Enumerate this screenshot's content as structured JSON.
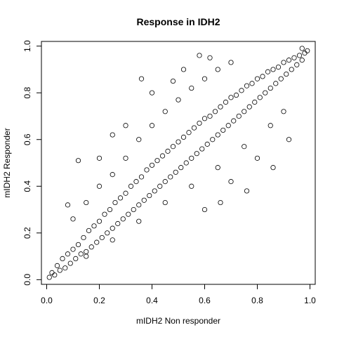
{
  "chart_data": {
    "type": "scatter",
    "title": "Response in IDH2",
    "xlabel": "mIDH2 Non responder",
    "ylabel": "mIDH2 Responder",
    "xlim": [
      -0.02,
      1.02
    ],
    "ylim": [
      -0.02,
      1.02
    ],
    "x_ticks": [
      0.0,
      0.2,
      0.4,
      0.6,
      0.8,
      1.0
    ],
    "y_ticks": [
      0.0,
      0.2,
      0.4,
      0.6,
      0.8,
      1.0
    ],
    "x_tick_labels": [
      "0.0",
      "0.2",
      "0.4",
      "0.6",
      "0.8",
      "1.0"
    ],
    "y_tick_labels": [
      "0.0",
      "0.2",
      "0.4",
      "0.6",
      "0.8",
      "1.0"
    ],
    "grid": false,
    "marker": "open-circle",
    "points": [
      [
        0.01,
        0.01
      ],
      [
        0.02,
        0.03
      ],
      [
        0.03,
        0.02
      ],
      [
        0.04,
        0.06
      ],
      [
        0.05,
        0.04
      ],
      [
        0.06,
        0.09
      ],
      [
        0.07,
        0.05
      ],
      [
        0.08,
        0.11
      ],
      [
        0.09,
        0.07
      ],
      [
        0.1,
        0.13
      ],
      [
        0.11,
        0.09
      ],
      [
        0.12,
        0.15
      ],
      [
        0.13,
        0.11
      ],
      [
        0.14,
        0.18
      ],
      [
        0.15,
        0.12
      ],
      [
        0.16,
        0.21
      ],
      [
        0.17,
        0.14
      ],
      [
        0.18,
        0.23
      ],
      [
        0.19,
        0.16
      ],
      [
        0.2,
        0.25
      ],
      [
        0.21,
        0.18
      ],
      [
        0.22,
        0.28
      ],
      [
        0.23,
        0.2
      ],
      [
        0.24,
        0.3
      ],
      [
        0.25,
        0.22
      ],
      [
        0.26,
        0.33
      ],
      [
        0.27,
        0.24
      ],
      [
        0.28,
        0.35
      ],
      [
        0.29,
        0.26
      ],
      [
        0.3,
        0.37
      ],
      [
        0.31,
        0.28
      ],
      [
        0.32,
        0.4
      ],
      [
        0.33,
        0.3
      ],
      [
        0.34,
        0.42
      ],
      [
        0.35,
        0.32
      ],
      [
        0.36,
        0.44
      ],
      [
        0.37,
        0.34
      ],
      [
        0.38,
        0.47
      ],
      [
        0.39,
        0.36
      ],
      [
        0.4,
        0.49
      ],
      [
        0.41,
        0.38
      ],
      [
        0.42,
        0.51
      ],
      [
        0.43,
        0.4
      ],
      [
        0.44,
        0.53
      ],
      [
        0.45,
        0.42
      ],
      [
        0.46,
        0.55
      ],
      [
        0.47,
        0.44
      ],
      [
        0.48,
        0.57
      ],
      [
        0.49,
        0.46
      ],
      [
        0.5,
        0.59
      ],
      [
        0.51,
        0.48
      ],
      [
        0.52,
        0.61
      ],
      [
        0.53,
        0.5
      ],
      [
        0.54,
        0.63
      ],
      [
        0.55,
        0.52
      ],
      [
        0.56,
        0.65
      ],
      [
        0.57,
        0.54
      ],
      [
        0.58,
        0.67
      ],
      [
        0.59,
        0.56
      ],
      [
        0.6,
        0.69
      ],
      [
        0.61,
        0.58
      ],
      [
        0.62,
        0.7
      ],
      [
        0.63,
        0.6
      ],
      [
        0.64,
        0.72
      ],
      [
        0.65,
        0.62
      ],
      [
        0.66,
        0.74
      ],
      [
        0.67,
        0.64
      ],
      [
        0.68,
        0.76
      ],
      [
        0.69,
        0.66
      ],
      [
        0.7,
        0.78
      ],
      [
        0.71,
        0.68
      ],
      [
        0.72,
        0.79
      ],
      [
        0.73,
        0.7
      ],
      [
        0.74,
        0.81
      ],
      [
        0.75,
        0.72
      ],
      [
        0.76,
        0.83
      ],
      [
        0.77,
        0.74
      ],
      [
        0.78,
        0.84
      ],
      [
        0.79,
        0.76
      ],
      [
        0.8,
        0.86
      ],
      [
        0.81,
        0.78
      ],
      [
        0.82,
        0.87
      ],
      [
        0.83,
        0.8
      ],
      [
        0.84,
        0.89
      ],
      [
        0.85,
        0.82
      ],
      [
        0.86,
        0.9
      ],
      [
        0.87,
        0.84
      ],
      [
        0.88,
        0.91
      ],
      [
        0.89,
        0.86
      ],
      [
        0.9,
        0.93
      ],
      [
        0.91,
        0.88
      ],
      [
        0.92,
        0.94
      ],
      [
        0.93,
        0.9
      ],
      [
        0.94,
        0.95
      ],
      [
        0.95,
        0.92
      ],
      [
        0.96,
        0.96
      ],
      [
        0.97,
        0.94
      ],
      [
        0.98,
        0.97
      ],
      [
        0.99,
        0.98
      ],
      [
        0.97,
        0.99
      ],
      [
        0.1,
        0.26
      ],
      [
        0.15,
        0.33
      ],
      [
        0.2,
        0.4
      ],
      [
        0.25,
        0.45
      ],
      [
        0.3,
        0.52
      ],
      [
        0.35,
        0.6
      ],
      [
        0.4,
        0.66
      ],
      [
        0.45,
        0.72
      ],
      [
        0.5,
        0.77
      ],
      [
        0.55,
        0.82
      ],
      [
        0.6,
        0.86
      ],
      [
        0.65,
        0.9
      ],
      [
        0.7,
        0.93
      ],
      [
        0.15,
        0.1
      ],
      [
        0.25,
        0.17
      ],
      [
        0.35,
        0.25
      ],
      [
        0.45,
        0.33
      ],
      [
        0.55,
        0.4
      ],
      [
        0.65,
        0.48
      ],
      [
        0.75,
        0.57
      ],
      [
        0.85,
        0.66
      ],
      [
        0.9,
        0.72
      ],
      [
        0.6,
        0.3
      ],
      [
        0.7,
        0.42
      ],
      [
        0.8,
        0.52
      ],
      [
        0.3,
        0.66
      ],
      [
        0.2,
        0.52
      ],
      [
        0.48,
        0.85
      ],
      [
        0.52,
        0.9
      ],
      [
        0.62,
        0.95
      ],
      [
        0.12,
        0.51
      ],
      [
        0.08,
        0.32
      ],
      [
        0.25,
        0.62
      ],
      [
        0.4,
        0.8
      ],
      [
        0.36,
        0.86
      ],
      [
        0.58,
        0.96
      ],
      [
        0.66,
        0.33
      ],
      [
        0.76,
        0.38
      ],
      [
        0.86,
        0.48
      ],
      [
        0.92,
        0.6
      ]
    ]
  }
}
